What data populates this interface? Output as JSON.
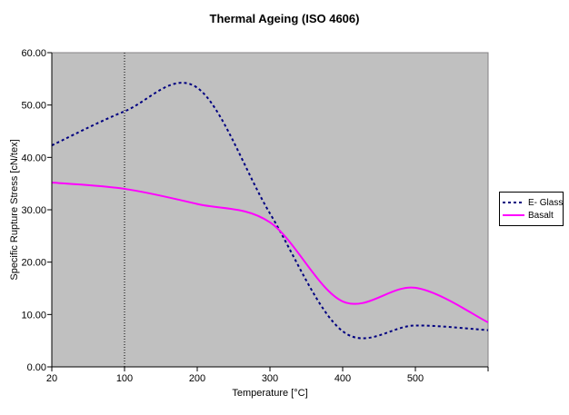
{
  "chart_data": {
    "type": "line",
    "title": "Thermal Ageing (ISO 4606)",
    "xlabel": "Temperature [°C]",
    "ylabel": "Specific Rupture Stress [cN/tex]",
    "categories": [
      20,
      100,
      200,
      300,
      400,
      500,
      600
    ],
    "x_tick_labels": [
      "20",
      "100",
      "200",
      "300",
      "400",
      "500",
      ""
    ],
    "y_ticks": [
      0,
      10,
      20,
      30,
      40,
      50,
      60
    ],
    "y_tick_labels": [
      "0.00",
      "10.00",
      "20.00",
      "30.00",
      "40.00",
      "50.00",
      "60.00"
    ],
    "ylim": [
      0,
      60
    ],
    "grid": "single vertical dotted gridline at the 100 °C category",
    "gridline_at_category": 1,
    "plot_bg_color": "#C0C0C0",
    "plot_border_color": "#848284",
    "axis_color": "#000000",
    "legend_position": "right-middle",
    "series": [
      {
        "name": "E- Glass",
        "color": "#000080",
        "line_style": "dashed",
        "dash": "3 3",
        "width": 2,
        "smooth": true,
        "values": [
          42.3,
          48.8,
          53.3,
          29.3,
          6.8,
          7.9,
          7.0
        ]
      },
      {
        "name": "Basalt",
        "color": "#FF00FF",
        "line_style": "solid",
        "dash": "",
        "width": 2,
        "smooth": true,
        "values": [
          35.2,
          34.0,
          31.1,
          27.6,
          12.5,
          15.1,
          8.5
        ]
      }
    ]
  }
}
